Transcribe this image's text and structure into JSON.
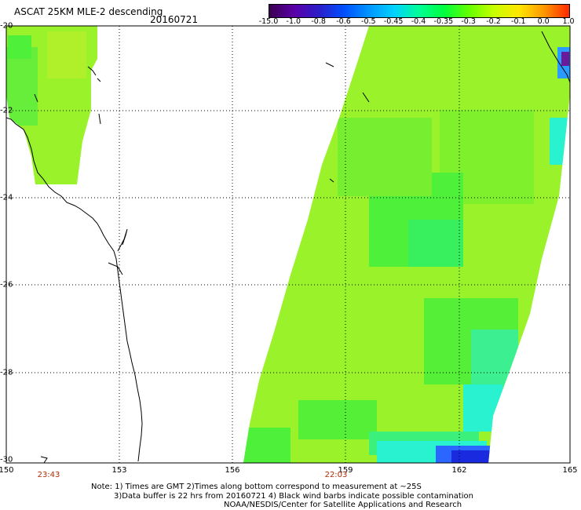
{
  "header": {
    "title": "ASCAT 25KM MLE-2 descending",
    "date": "20160721"
  },
  "colorbar": {
    "tick_labels": [
      "-15.0",
      "-1.0",
      "-0.8",
      "-0.6",
      "-0.5",
      "-0.45",
      "-0.4",
      "-0.35",
      "-0.3",
      "-0.2",
      "-0.1",
      "0.0",
      "1.0"
    ],
    "colors": [
      "#3a0050",
      "#5a00a8",
      "#2a1ec8",
      "#0050ff",
      "#0096ff",
      "#00d2ff",
      "#00ff96",
      "#00ff3c",
      "#66ff00",
      "#c8ff00",
      "#ffe600",
      "#ff9600",
      "#ff2800"
    ]
  },
  "axes": {
    "lat_labels": [
      "-20",
      "-22",
      "-24",
      "-26",
      "-28",
      "-30"
    ],
    "lon_labels": [
      "150",
      "153",
      "156",
      "159",
      "162",
      "165"
    ],
    "time_labels": [
      "23:43",
      "22:03"
    ]
  },
  "notes": {
    "line1": "Note: 1) Times are GMT 2)Times along bottom correspond to measurement at ~25S",
    "line2": "3)Data buffer is 22 hrs from 20160721 4) Black wind barbs indicate possible contamination",
    "line3": "NOAA/NESDIS/Center for Satellite Applications and Research"
  },
  "swath_colors": {
    "main": "#99f22a",
    "light": "#b5ee2e",
    "green": "#4ef03a",
    "cyan": "#28f2d0",
    "blue": "#2a66ff",
    "deep_blue": "#1a2adf"
  }
}
